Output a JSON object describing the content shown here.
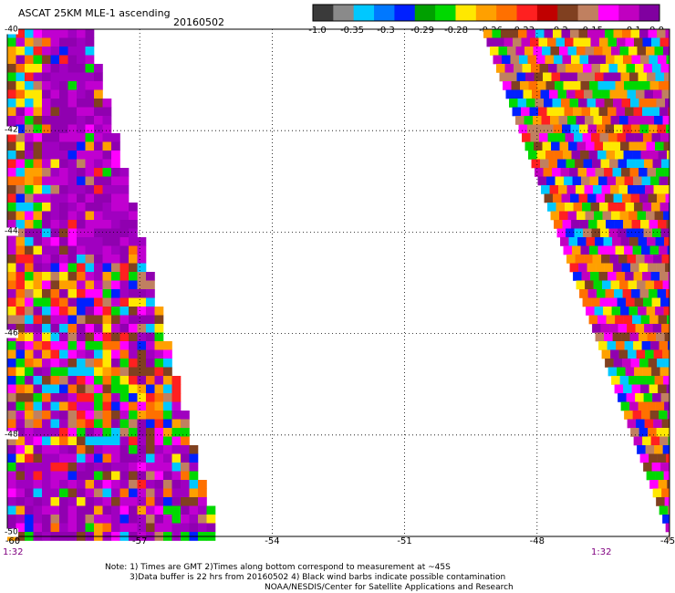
{
  "header": {
    "title": "ASCAT 25KM MLE-1 ascending",
    "date": "20160502"
  },
  "colorbar": {
    "colors": [
      "#3a3a3a",
      "#8a8a8a",
      "#00c8ff",
      "#0078ff",
      "#0020ff",
      "#00a000",
      "#00d800",
      "#ffe800",
      "#ffa000",
      "#ff7000",
      "#ff2020",
      "#c00000",
      "#804020",
      "#c08060",
      "#ff00ff",
      "#c000c0",
      "#8000a0"
    ],
    "tick_labels": [
      "-1.0",
      "-0.35",
      "-0.3",
      "-0.29",
      "-0.28",
      "-0.26",
      "-0.23",
      "-0.2",
      "-0.15",
      "-0.1",
      "0.0"
    ]
  },
  "axes": {
    "lon_labels": [
      "-60",
      "-57",
      "-54",
      "-51",
      "-48",
      "-45"
    ],
    "lat_labels": [
      "-40",
      "-42",
      "-44",
      "-46",
      "-48",
      "-50"
    ],
    "time_left": "1:32",
    "time_right": "1:32"
  },
  "notes": {
    "line1": "Note: 1) Times are GMT 2)Times along bottom correspond to measurement at ~45S",
    "line2": "3)Data buffer is 22 hrs from 20160502 4) Black wind barbs indicate possible contamination",
    "line3": "NOAA/NESDIS/Center for Satellite Applications and Research"
  },
  "map_data": {
    "lon_range": [
      -60,
      -45
    ],
    "lat_range": [
      -40,
      -50
    ],
    "grid": true,
    "left_swath_palette": [
      "#9000b0",
      "#a000c0",
      "#c000d0",
      "#ff2020",
      "#ff7000",
      "#ffa000",
      "#ffe800",
      "#0020ff",
      "#00c8ff",
      "#00d800",
      "#804020",
      "#c08060",
      "#ff00ff"
    ],
    "right_swath_palette": [
      "#ff2020",
      "#ff7000",
      "#ffa000",
      "#ffe800",
      "#9000b0",
      "#c000c0",
      "#ff00ff",
      "#0020ff",
      "#00c8ff",
      "#00d800",
      "#804020",
      "#c08060"
    ]
  }
}
